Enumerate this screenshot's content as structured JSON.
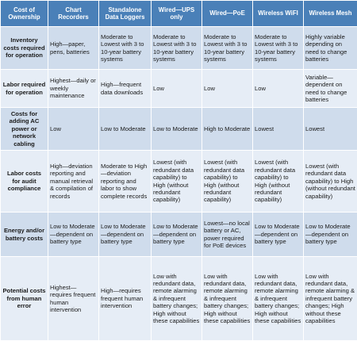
{
  "table": {
    "headers": [
      "Cost of Ownership",
      "Chart Recorders",
      "Standalone Data Loggers",
      "Wired—UPS only",
      "Wired—PoE",
      "Wireless WiFI",
      "Wireless Mesh"
    ],
    "rows": [
      [
        "Inventory costs required for operation",
        "High—paper, pens, batteries",
        "Moderate to Lowest with 3 to 10-year battery systems",
        "Moderate to Lowest with 3 to 10-year battery systems",
        "Moderate to Lowest with 3 to 10-year battery systems",
        "Moderate to Lowest with 3 to 10-year battery systems",
        "Highly variable depending on need to change batteries"
      ],
      [
        "Labor required for operation",
        "Highest—daily or weekly maintenance",
        "High—frequent data downloads",
        "Low",
        "Low",
        "Low",
        "Variable—dependent on need to change batteries"
      ],
      [
        "Costs for adding AC power or network cabling",
        "Low",
        "Low to Moderate",
        "Low to Moderate",
        "High to Moderate",
        "Lowest",
        "Lowest"
      ],
      [
        "Labor costs for audit compliance",
        "High—deviation reporting and manual retrieval & compilation of records",
        "Moderate to High—deviation reporting and labor to show complete records",
        "Lowest (with redundant data capability) to High (without redundant capability)",
        "Lowest (with redundant data capability) to High (without redundant capability)",
        "Lowest (with redundant data capability) to High (without redundant capability)",
        "Lowest (with redundant data capability) to High (without redundant capability)"
      ],
      [
        "Energy and/or battery costs",
        "Low to Moderate—dependent on battery type",
        "Low to Moderate—dependent on battery type",
        "Low to Moderate—dependent on battery type",
        "Lowest—no local battery or AC, power required for PoE devices",
        "Low to Moderate—dependent on battery type",
        "Low to Moderate—dependent on battery type"
      ],
      [
        "Potential costs from human error",
        "Highest—requires frequent human intervention",
        "High—requires frequent human intervention",
        "Low with redundant data, remote alarming & infrequent battery changes; High without these capabilities",
        "Low with redundant data, remote alarming & infrequent battery changes; High without these capabilities",
        "Low with redundant data, remote alarming & infrequent battery changes; High without these capabilities",
        "Low with redundant data, remote alarming & infrequent battery changes; High without these capabilities"
      ]
    ]
  },
  "colors": {
    "header_bg": "#4a80b8",
    "row_dark": "#cfdcec",
    "row_light": "#e6edf6"
  }
}
